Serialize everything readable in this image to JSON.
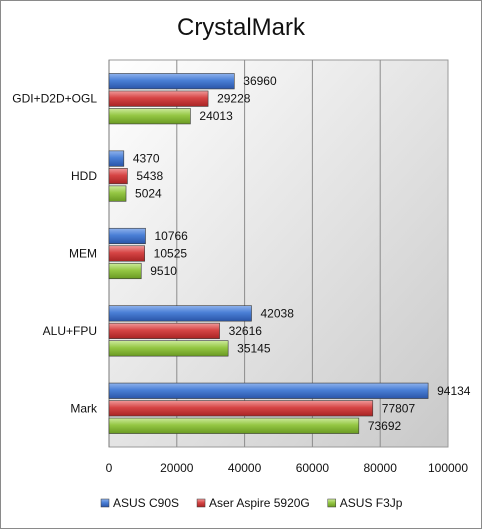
{
  "chart_data": {
    "type": "bar",
    "orientation": "horizontal",
    "title": "CrystalMark",
    "xlabel": "",
    "ylabel": "",
    "categories": [
      "GDI+D2D+OGL",
      "HDD",
      "MEM",
      "ALU+FPU",
      "Mark"
    ],
    "series": [
      {
        "name": "ASUS C90S",
        "color": "#3f6fc8",
        "values": [
          36960,
          4370,
          10766,
          42038,
          94134
        ]
      },
      {
        "name": "Aser Aspire 5920G",
        "color": "#cf3a3a",
        "values": [
          29228,
          5438,
          10525,
          32616,
          77807
        ]
      },
      {
        "name": "ASUS F3Jp",
        "color": "#8ec43b",
        "values": [
          24013,
          5024,
          9510,
          35145,
          73692
        ]
      }
    ],
    "xlim": [
      0,
      100000
    ],
    "xticks": [
      0,
      20000,
      40000,
      60000,
      80000,
      100000
    ],
    "xtick_labels": [
      "0",
      "20000",
      "40000",
      "60000",
      "80000",
      "100000"
    ],
    "grid": true,
    "legend_position": "bottom"
  }
}
